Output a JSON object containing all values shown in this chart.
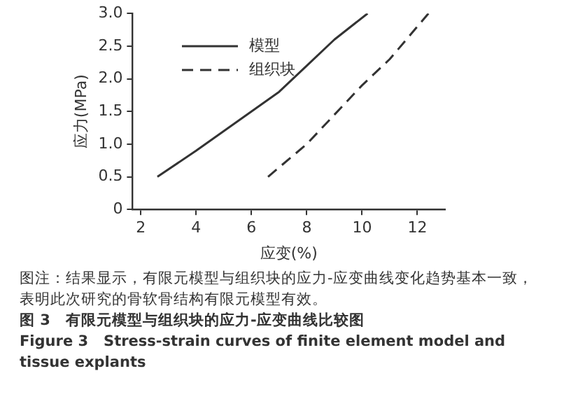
{
  "chart_data": {
    "type": "line",
    "xlabel": "应变(%)",
    "ylabel": "应力(MPa)",
    "xlim": [
      1.7,
      13
    ],
    "xticks": [
      2,
      4,
      6,
      8,
      10,
      12
    ],
    "ylim": [
      0,
      3
    ],
    "yticks": [
      0,
      0.5,
      {
        "value": 1,
        "label": "1.0"
      },
      1.5,
      {
        "value": 2,
        "label": "2.0"
      },
      2.5,
      {
        "value": 3,
        "label": "3.0"
      }
    ],
    "grid": false,
    "legend": "top left",
    "marker": "none",
    "series": [
      {
        "name": "模型",
        "color": "#333333",
        "line_style": "solid",
        "x": [
          2.6,
          4,
          5,
          6,
          7,
          8,
          9,
          10.2
        ],
        "values": [
          0.5,
          0.9,
          1.2,
          1.5,
          1.8,
          2.2,
          2.6,
          3.0
        ]
      },
      {
        "name": "组织块",
        "color": "#333333",
        "line_style": "dashed",
        "x": [
          6.6,
          8,
          9,
          10,
          11,
          12.4
        ],
        "values": [
          0.5,
          1.0,
          1.45,
          1.9,
          2.3,
          3.0
        ]
      }
    ],
    "annotations": [
      "图注：结果显示，有限元模型与组织块的应力-应变曲线变化趋势基本一致，表明此次研究的骨软骨结构有限元模型有效。",
      "图 3　有限元模型与组织块的应力-应变曲线比较图",
      "Figure 3　Stress-strain curves of finite element model and tissue explants"
    ]
  }
}
